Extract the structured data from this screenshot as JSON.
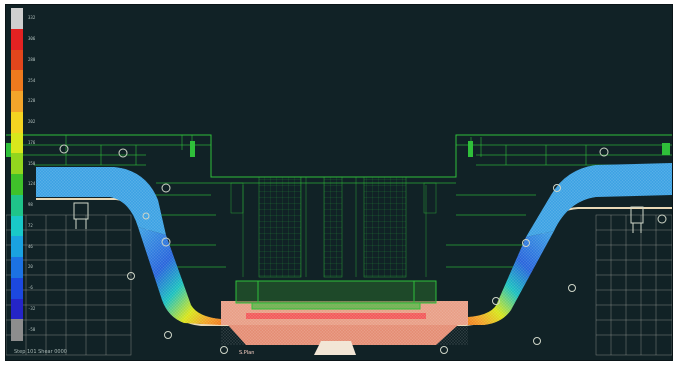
{
  "viewer": {
    "colors": {
      "background": "#112226",
      "die_outline": "#2fbf3a",
      "die_body": "#152a2c",
      "blank_hot": "#e9a088",
      "blank_cold": "#1d3bd8"
    }
  },
  "legend": {
    "bands": [
      {
        "color": "#cfcfcf",
        "value": "332"
      },
      {
        "color": "#e32222",
        "value": "306"
      },
      {
        "color": "#e2461c",
        "value": "280"
      },
      {
        "color": "#ee7a1e",
        "value": "254"
      },
      {
        "color": "#f3a52a",
        "value": "228"
      },
      {
        "color": "#f4d421",
        "value": "202"
      },
      {
        "color": "#d9e71c",
        "value": "176"
      },
      {
        "color": "#93d61e",
        "value": "150"
      },
      {
        "color": "#3fc22a",
        "value": "124"
      },
      {
        "color": "#1fc48a",
        "value": "98"
      },
      {
        "color": "#19c8c8",
        "value": "72"
      },
      {
        "color": "#1aa2e0",
        "value": "46"
      },
      {
        "color": "#1c72e3",
        "value": "20"
      },
      {
        "color": "#1c48df",
        "value": "-6"
      },
      {
        "color": "#2525c8",
        "value": "-32"
      },
      {
        "color": "#8d8d8d",
        "value": "-58"
      }
    ]
  },
  "status": {
    "text": "Step 101 Shear 0000",
    "bottom_label": "S.Plan"
  }
}
